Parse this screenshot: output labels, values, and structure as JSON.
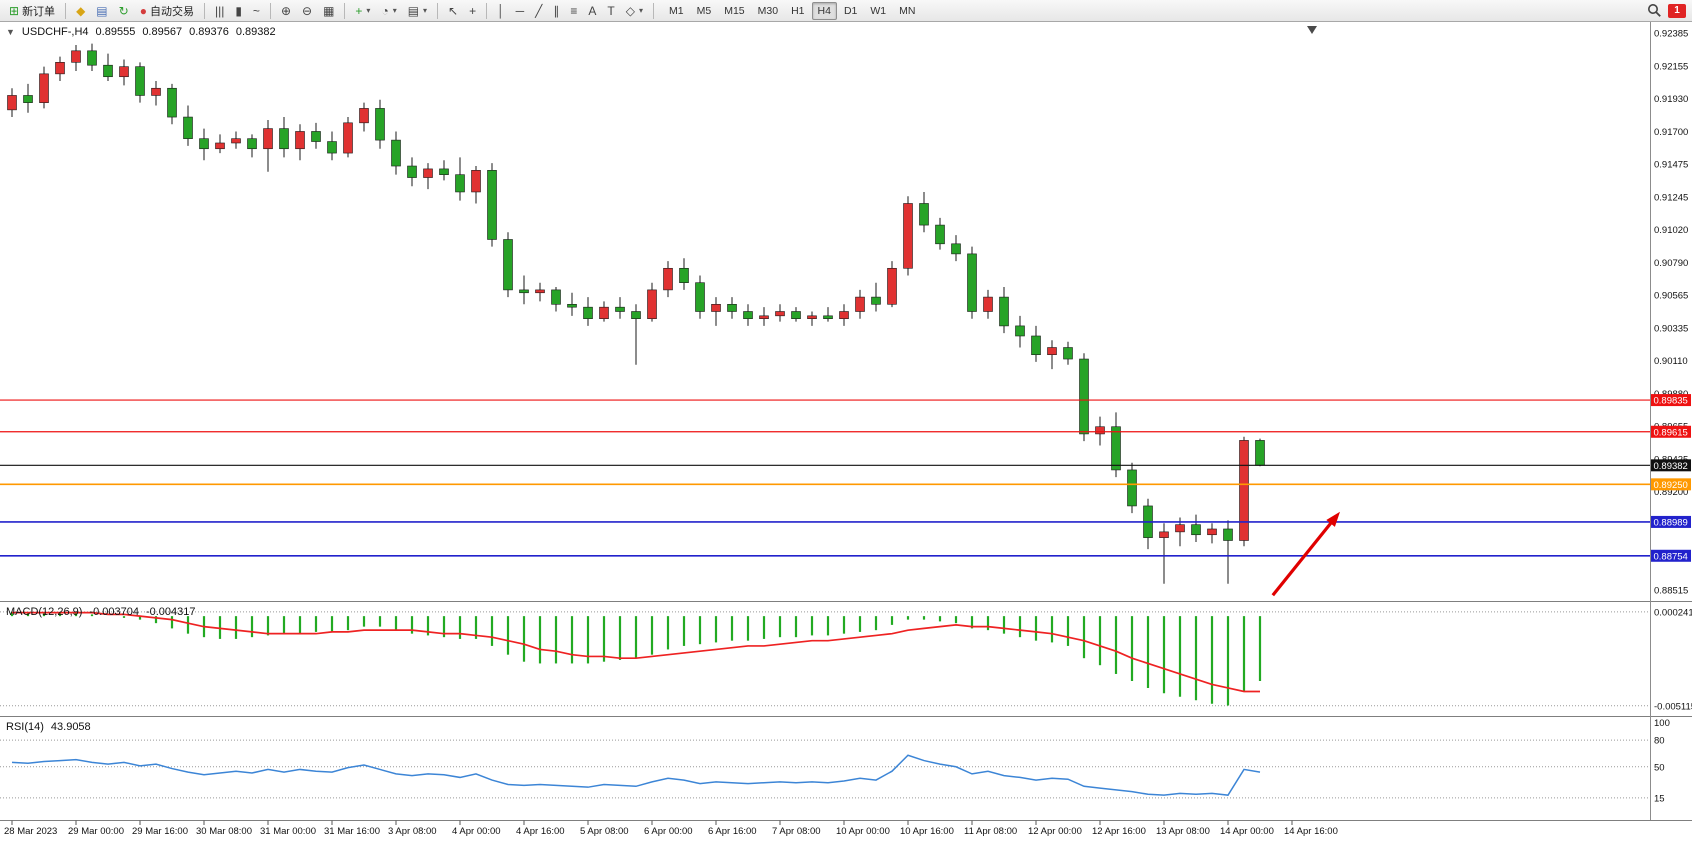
{
  "toolbar": {
    "groups": [
      {
        "items": [
          {
            "name": "new-order",
            "glyph": "⊞",
            "color": "#2e9e2e",
            "label": "新订单"
          }
        ]
      },
      {
        "items": [
          {
            "name": "metaeditor",
            "glyph": "◆",
            "color": "#d8a516"
          },
          {
            "name": "print",
            "glyph": "▤",
            "color": "#4a6fb5"
          },
          {
            "name": "refresh",
            "glyph": "↻",
            "color": "#2e9e2e"
          },
          {
            "name": "autotrading",
            "glyph": "●",
            "color": "#d43c3c",
            "label": "自动交易"
          }
        ]
      },
      {
        "items": [
          {
            "name": "bar-chart",
            "glyph": "|||"
          },
          {
            "name": "candlestick-chart",
            "glyph": "▮"
          },
          {
            "name": "line-chart",
            "glyph": "~"
          }
        ]
      },
      {
        "items": [
          {
            "name": "zoom-in",
            "glyph": "⊕"
          },
          {
            "name": "zoom-out",
            "glyph": "⊖"
          },
          {
            "name": "tile-windows",
            "glyph": "▦"
          }
        ]
      },
      {
        "items": [
          {
            "name": "indicators",
            "glyph": "+",
            "color": "#2e9e2e",
            "dropdown": true
          },
          {
            "name": "periods",
            "glyph": "◔",
            "dropdown": true
          },
          {
            "name": "templates",
            "glyph": "▤",
            "dropdown": true
          }
        ]
      },
      {
        "items": [
          {
            "name": "cursor",
            "glyph": "↖"
          },
          {
            "name": "crosshair",
            "glyph": "+"
          }
        ]
      },
      {
        "items": [
          {
            "name": "vertical-line",
            "glyph": "│"
          },
          {
            "name": "horizontal-line",
            "glyph": "─"
          },
          {
            "name": "trendline",
            "glyph": "╱"
          },
          {
            "name": "equidistant-channel",
            "glyph": "∥"
          },
          {
            "name": "fibonacci-retracement",
            "glyph": "≡"
          },
          {
            "name": "text",
            "glyph": "A"
          },
          {
            "name": "text-label",
            "glyph": "T"
          },
          {
            "name": "arrows",
            "glyph": "◇",
            "dropdown": true
          }
        ]
      }
    ],
    "timeframes": [
      {
        "label": "M1"
      },
      {
        "label": "M5"
      },
      {
        "label": "M15"
      },
      {
        "label": "M30"
      },
      {
        "label": "H1"
      },
      {
        "label": "H4",
        "active": true
      },
      {
        "label": "D1"
      },
      {
        "label": "W1"
      },
      {
        "label": "MN"
      }
    ],
    "badge": "1"
  },
  "chart": {
    "dropdown_glyph": "▼",
    "symbol_title": "USDCHF-,H4",
    "open": "0.89555",
    "high": "0.89567",
    "low": "0.89376",
    "close": "0.89382"
  },
  "chart_data": {
    "type": "candlestick",
    "symbol": "USDCHF-",
    "timeframe": "H4",
    "up_color": "#e03232",
    "down_color": "#27a327",
    "ylim": [
      0.8844,
      0.9246
    ],
    "y_ticks": [
      "0.92385",
      "0.92155",
      "0.91930",
      "0.91700",
      "0.91475",
      "0.91245",
      "0.91020",
      "0.90790",
      "0.90565",
      "0.90335",
      "0.90110",
      "0.89880",
      "0.89655",
      "0.89425",
      "0.89200",
      "0.88975",
      "0.88745",
      "0.88515"
    ],
    "x_labels": [
      "28 Mar 2023",
      "29 Mar 00:00",
      "29 Mar 16:00",
      "30 Mar 08:00",
      "31 Mar 00:00",
      "31 Mar 16:00",
      "3 Apr 08:00",
      "4 Apr 00:00",
      "4 Apr 16:00",
      "5 Apr 08:00",
      "6 Apr 00:00",
      "6 Apr 16:00",
      "7 Apr 08:00",
      "10 Apr 00:00",
      "10 Apr 16:00",
      "11 Apr 08:00",
      "12 Apr 00:00",
      "12 Apr 16:00",
      "13 Apr 08:00",
      "14 Apr 00:00",
      "14 Apr 16:00"
    ],
    "candles": [
      [
        0.9185,
        0.92,
        0.918,
        0.9195
      ],
      [
        0.9195,
        0.9203,
        0.9183,
        0.919
      ],
      [
        0.919,
        0.9215,
        0.9186,
        0.921
      ],
      [
        0.921,
        0.9222,
        0.9205,
        0.9218
      ],
      [
        0.9218,
        0.923,
        0.9212,
        0.9226
      ],
      [
        0.9226,
        0.9231,
        0.9212,
        0.9216
      ],
      [
        0.9216,
        0.9224,
        0.9205,
        0.9208
      ],
      [
        0.9208,
        0.922,
        0.9202,
        0.9215
      ],
      [
        0.9215,
        0.9218,
        0.919,
        0.9195
      ],
      [
        0.9195,
        0.9205,
        0.9188,
        0.92
      ],
      [
        0.92,
        0.9203,
        0.9175,
        0.918
      ],
      [
        0.918,
        0.9188,
        0.916,
        0.9165
      ],
      [
        0.9165,
        0.9172,
        0.915,
        0.9158
      ],
      [
        0.9158,
        0.9168,
        0.9155,
        0.9162
      ],
      [
        0.9162,
        0.917,
        0.9158,
        0.9165
      ],
      [
        0.9165,
        0.9168,
        0.9152,
        0.9158
      ],
      [
        0.9158,
        0.9178,
        0.9142,
        0.9172
      ],
      [
        0.9172,
        0.918,
        0.9152,
        0.9158
      ],
      [
        0.9158,
        0.9175,
        0.915,
        0.917
      ],
      [
        0.917,
        0.9176,
        0.9158,
        0.9163
      ],
      [
        0.9163,
        0.917,
        0.915,
        0.9155
      ],
      [
        0.9155,
        0.918,
        0.9152,
        0.9176
      ],
      [
        0.9176,
        0.919,
        0.917,
        0.9186
      ],
      [
        0.9186,
        0.9192,
        0.9158,
        0.9164
      ],
      [
        0.9164,
        0.917,
        0.914,
        0.9146
      ],
      [
        0.9146,
        0.9152,
        0.9132,
        0.9138
      ],
      [
        0.9138,
        0.9148,
        0.913,
        0.9144
      ],
      [
        0.9144,
        0.915,
        0.9136,
        0.914
      ],
      [
        0.914,
        0.9152,
        0.9122,
        0.9128
      ],
      [
        0.9128,
        0.9146,
        0.912,
        0.9143
      ],
      [
        0.9143,
        0.9148,
        0.909,
        0.9095
      ],
      [
        0.9095,
        0.91,
        0.9055,
        0.906
      ],
      [
        0.906,
        0.907,
        0.905,
        0.9058
      ],
      [
        0.9058,
        0.9065,
        0.9052,
        0.906
      ],
      [
        0.906,
        0.9062,
        0.9045,
        0.905
      ],
      [
        0.905,
        0.9058,
        0.9042,
        0.9048
      ],
      [
        0.9048,
        0.9055,
        0.9035,
        0.904
      ],
      [
        0.904,
        0.9052,
        0.9038,
        0.9048
      ],
      [
        0.9048,
        0.9055,
        0.904,
        0.9045
      ],
      [
        0.9045,
        0.905,
        0.9008,
        0.904
      ],
      [
        0.904,
        0.9065,
        0.9038,
        0.906
      ],
      [
        0.906,
        0.908,
        0.9055,
        0.9075
      ],
      [
        0.9075,
        0.9082,
        0.906,
        0.9065
      ],
      [
        0.9065,
        0.907,
        0.904,
        0.9045
      ],
      [
        0.9045,
        0.9055,
        0.9035,
        0.905
      ],
      [
        0.905,
        0.9055,
        0.904,
        0.9045
      ],
      [
        0.9045,
        0.905,
        0.9035,
        0.904
      ],
      [
        0.904,
        0.9048,
        0.9035,
        0.9042
      ],
      [
        0.9042,
        0.905,
        0.9038,
        0.9045
      ],
      [
        0.9045,
        0.9048,
        0.9038,
        0.904
      ],
      [
        0.904,
        0.9045,
        0.9035,
        0.9042
      ],
      [
        0.9042,
        0.9048,
        0.9038,
        0.904
      ],
      [
        0.904,
        0.905,
        0.9035,
        0.9045
      ],
      [
        0.9045,
        0.906,
        0.904,
        0.9055
      ],
      [
        0.9055,
        0.9065,
        0.9045,
        0.905
      ],
      [
        0.905,
        0.908,
        0.9048,
        0.9075
      ],
      [
        0.9075,
        0.9125,
        0.907,
        0.912
      ],
      [
        0.912,
        0.9128,
        0.91,
        0.9105
      ],
      [
        0.9105,
        0.911,
        0.9088,
        0.9092
      ],
      [
        0.9092,
        0.9098,
        0.908,
        0.9085
      ],
      [
        0.9085,
        0.909,
        0.904,
        0.9045
      ],
      [
        0.9045,
        0.906,
        0.904,
        0.9055
      ],
      [
        0.9055,
        0.9062,
        0.903,
        0.9035
      ],
      [
        0.9035,
        0.9042,
        0.902,
        0.9028
      ],
      [
        0.9028,
        0.9035,
        0.901,
        0.9015
      ],
      [
        0.9015,
        0.9025,
        0.9005,
        0.902
      ],
      [
        0.902,
        0.9024,
        0.9008,
        0.9012
      ],
      [
        0.9012,
        0.9016,
        0.8955,
        0.896
      ],
      [
        0.896,
        0.8972,
        0.8952,
        0.8965
      ],
      [
        0.8965,
        0.8975,
        0.893,
        0.8935
      ],
      [
        0.8935,
        0.894,
        0.8905,
        0.891
      ],
      [
        0.891,
        0.8915,
        0.888,
        0.8888
      ],
      [
        0.8888,
        0.8898,
        0.8856,
        0.8892
      ],
      [
        0.8892,
        0.8902,
        0.8882,
        0.8897
      ],
      [
        0.8897,
        0.8904,
        0.8885,
        0.889
      ],
      [
        0.889,
        0.8898,
        0.8884,
        0.8894
      ],
      [
        0.8894,
        0.89,
        0.8856,
        0.8886
      ],
      [
        0.8886,
        0.8958,
        0.8882,
        0.89555
      ],
      [
        0.89555,
        0.89567,
        0.89376,
        0.89382
      ]
    ],
    "hlines": [
      {
        "label": "0.89835",
        "price": 0.89835,
        "color": "#ee1111",
        "width": 1.2
      },
      {
        "label": "0.89615",
        "price": 0.89615,
        "color": "#ee1111",
        "width": 1.2
      },
      {
        "label": "0.89382",
        "price": 0.89382,
        "color": "#111111",
        "width": 1.1
      },
      {
        "label": "0.89250",
        "price": 0.8925,
        "color": "#ff9900",
        "width": 1.6
      },
      {
        "label": "0.88989",
        "price": 0.88989,
        "color": "#2222cc",
        "width": 1.6
      },
      {
        "label": "0.88754",
        "price": 0.88754,
        "color": "#2222cc",
        "width": 1.6
      }
    ],
    "arrow": {
      "color": "#e00000",
      "x1_candle": 78.8,
      "y1_price": 0.8848,
      "x2_candle": 83.0,
      "y2_price": 0.8906
    },
    "indicators": {
      "macd": {
        "label": "MACD(12,26,9)",
        "value_main": "-0.003704",
        "value_signal": "-0.004317",
        "hist_color": "#22aa22",
        "signal_color": "#ee2222",
        "axis_labels": [
          {
            "text": "0.000241",
            "value": 0.000241
          },
          {
            "text": "-0.005115",
            "value": -0.005115
          }
        ],
        "histogram": [
          0.00024,
          0.00022,
          0.0002,
          0.0002,
          0.00018,
          0.0001,
          0,
          -0.0001,
          -0.0002,
          -0.0004,
          -0.0007,
          -0.001,
          -0.0012,
          -0.0013,
          -0.0013,
          -0.0012,
          -0.0011,
          -0.001,
          -0.001,
          -0.0009,
          -0.0009,
          -0.0008,
          -0.0006,
          -0.0006,
          -0.0008,
          -0.001,
          -0.0011,
          -0.0012,
          -0.0013,
          -0.0013,
          -0.0017,
          -0.0022,
          -0.0026,
          -0.0027,
          -0.0027,
          -0.0027,
          -0.0027,
          -0.0026,
          -0.0025,
          -0.0024,
          -0.0022,
          -0.0019,
          -0.0017,
          -0.0016,
          -0.0015,
          -0.0014,
          -0.0014,
          -0.0013,
          -0.0012,
          -0.0012,
          -0.0011,
          -0.0011,
          -0.001,
          -0.0009,
          -0.0008,
          -0.0005,
          -0.0002,
          -0.0002,
          -0.0003,
          -0.0004,
          -0.0007,
          -0.0008,
          -0.001,
          -0.0012,
          -0.0014,
          -0.0015,
          -0.0017,
          -0.0024,
          -0.0028,
          -0.0033,
          -0.0037,
          -0.0041,
          -0.0044,
          -0.0046,
          -0.0048,
          -0.005,
          -0.0051,
          -0.0043,
          -0.0037
        ],
        "signal": [
          0.0002,
          0.0002,
          0.0002,
          0.0002,
          0.0002,
          0.0002,
          0.0001,
          0.0001,
          0,
          -0.0001,
          -0.0002,
          -0.0004,
          -0.0006,
          -0.0007,
          -0.0008,
          -0.0009,
          -0.001,
          -0.001,
          -0.001,
          -0.001,
          -0.0009,
          -0.0009,
          -0.0008,
          -0.0008,
          -0.0008,
          -0.0008,
          -0.0009,
          -0.001,
          -0.001,
          -0.0011,
          -0.0012,
          -0.0014,
          -0.0016,
          -0.0019,
          -0.002,
          -0.0022,
          -0.0023,
          -0.0023,
          -0.0024,
          -0.0024,
          -0.0023,
          -0.0022,
          -0.0021,
          -0.002,
          -0.0019,
          -0.0018,
          -0.0017,
          -0.0017,
          -0.0016,
          -0.0015,
          -0.0014,
          -0.0014,
          -0.0013,
          -0.0012,
          -0.0011,
          -0.001,
          -0.0008,
          -0.0007,
          -0.0006,
          -0.0005,
          -0.0006,
          -0.0006,
          -0.0007,
          -0.0008,
          -0.0009,
          -0.001,
          -0.0012,
          -0.0014,
          -0.0017,
          -0.002,
          -0.0024,
          -0.0027,
          -0.003,
          -0.0033,
          -0.0036,
          -0.0039,
          -0.0041,
          -0.0043,
          -0.0043
        ]
      },
      "rsi": {
        "label": "RSI(14)",
        "value": "43.9058",
        "color": "#3c85d6",
        "levels": [
          {
            "text": "100",
            "value": 100,
            "line": false
          },
          {
            "text": "80",
            "value": 80,
            "line": true
          },
          {
            "text": "50",
            "value": 50,
            "line": true
          },
          {
            "text": "15",
            "value": 15,
            "line": true
          }
        ],
        "values": [
          55,
          54,
          56,
          57,
          58,
          55,
          53,
          55,
          51,
          53,
          48,
          44,
          41,
          43,
          45,
          43,
          47,
          44,
          47,
          45,
          44,
          49,
          52,
          47,
          42,
          40,
          42,
          41,
          38,
          42,
          35,
          30,
          29,
          30,
          29,
          28,
          27,
          30,
          29,
          28,
          33,
          37,
          35,
          31,
          33,
          32,
          31,
          32,
          33,
          32,
          33,
          32,
          34,
          37,
          35,
          45,
          63,
          57,
          53,
          50,
          42,
          45,
          40,
          38,
          35,
          37,
          36,
          28,
          26,
          24,
          22,
          19,
          18,
          20,
          19,
          20,
          18,
          47,
          44
        ]
      }
    }
  }
}
